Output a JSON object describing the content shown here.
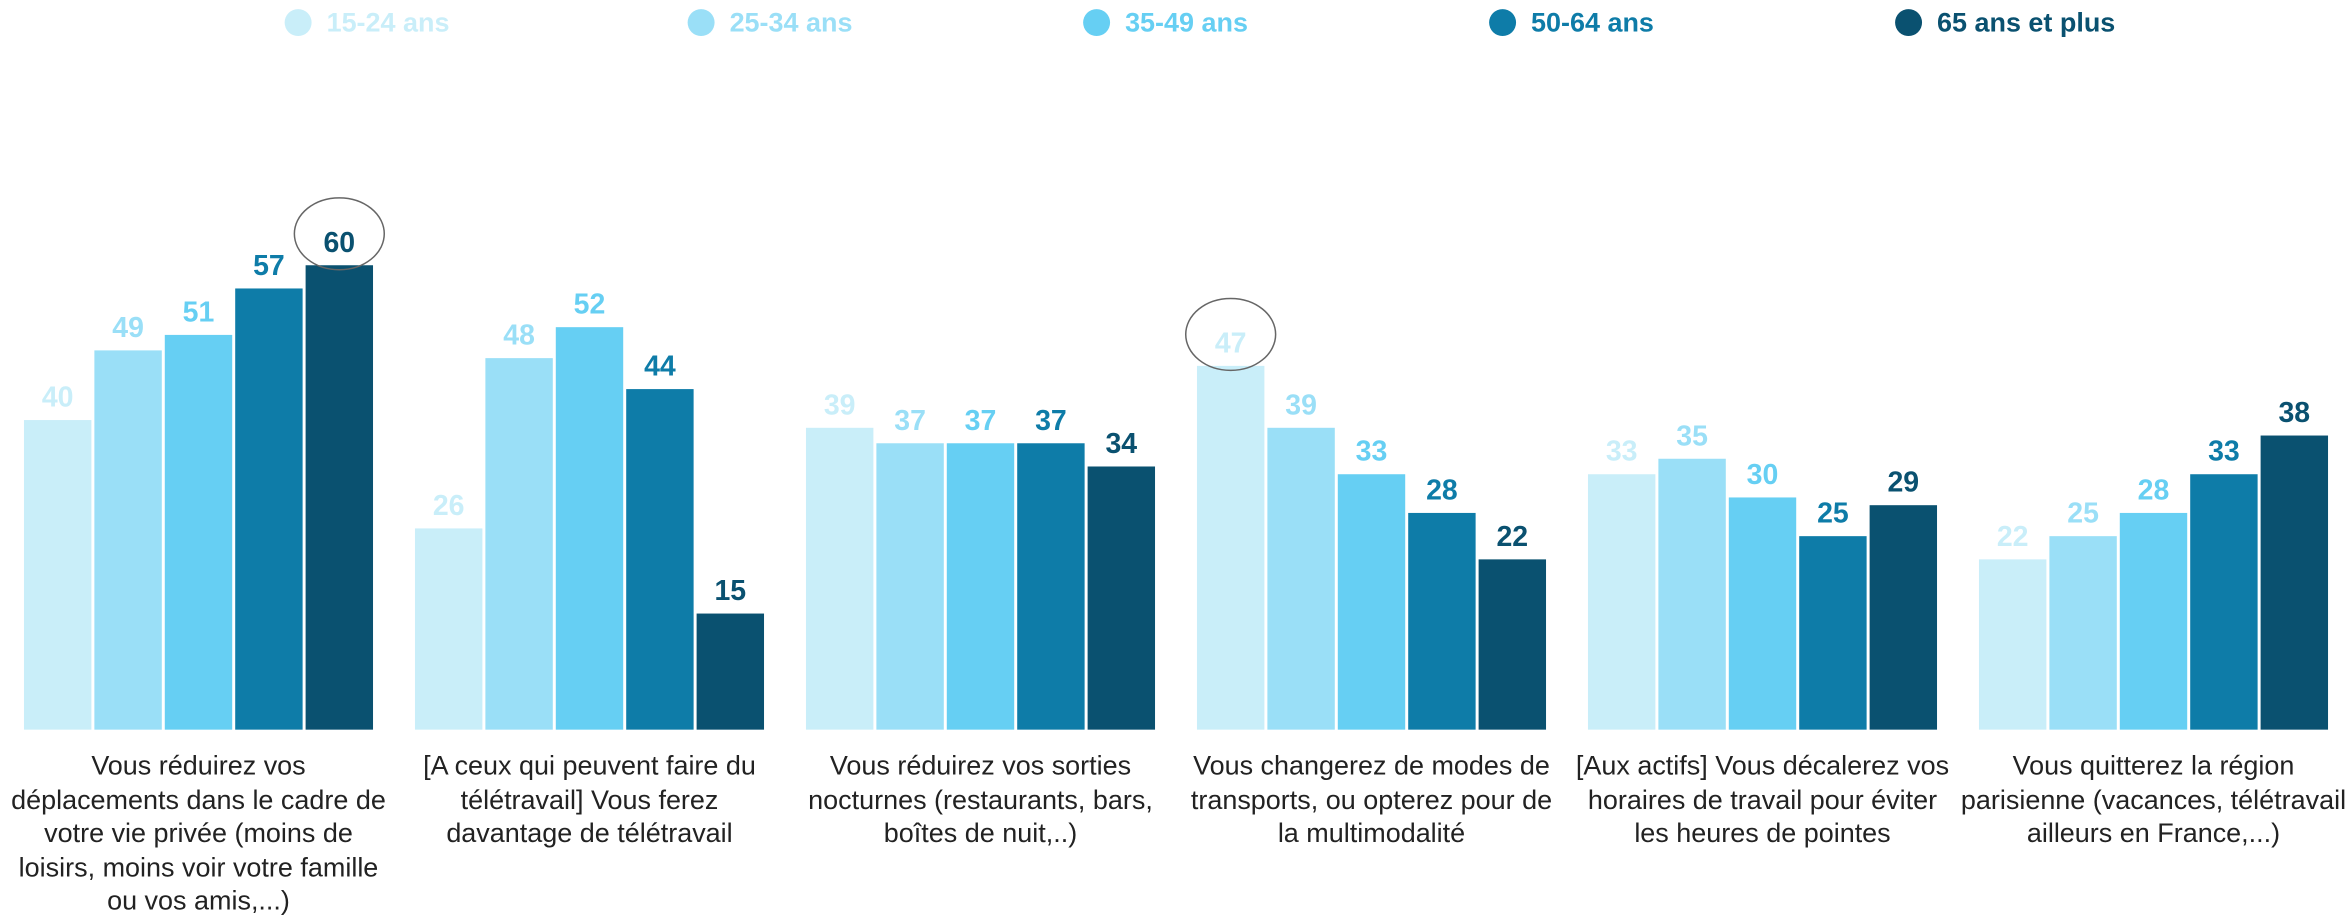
{
  "chart_data": {
    "type": "bar",
    "categories": [
      "Vous réduirez vos déplacements dans le cadre de votre vie privée (moins de loisirs, moins voir votre famille ou vos amis,...)",
      "[A ceux qui peuvent faire du télétravail] Vous ferez davantage de télétravail",
      "Vous réduirez vos sorties nocturnes (restaurants, bars, boîtes de nuit,..)",
      "Vous changerez de modes de transports, ou opterez pour de la multimodalité",
      "[Aux actifs] Vous décalerez vos horaires de travail pour éviter les heures de pointes",
      "Vous quitterez la région parisienne (vacances, télétravail ailleurs en France,...)"
    ],
    "series": [
      {
        "name": "15-24 ans",
        "color": "#c9eef9",
        "values": [
          40,
          26,
          39,
          47,
          33,
          22
        ]
      },
      {
        "name": "25-34 ans",
        "color": "#9adff7",
        "values": [
          49,
          48,
          37,
          39,
          35,
          25
        ]
      },
      {
        "name": "35-49 ans",
        "color": "#66cff3",
        "values": [
          51,
          52,
          37,
          33,
          30,
          28
        ]
      },
      {
        "name": "50-64 ans",
        "color": "#0e7ca8",
        "values": [
          57,
          44,
          37,
          28,
          25,
          33
        ]
      },
      {
        "name": "65 ans et plus",
        "color": "#0a5170",
        "values": [
          60,
          15,
          34,
          22,
          29,
          38
        ]
      }
    ],
    "ylim": [
      0,
      60
    ],
    "legend": "top"
  }
}
